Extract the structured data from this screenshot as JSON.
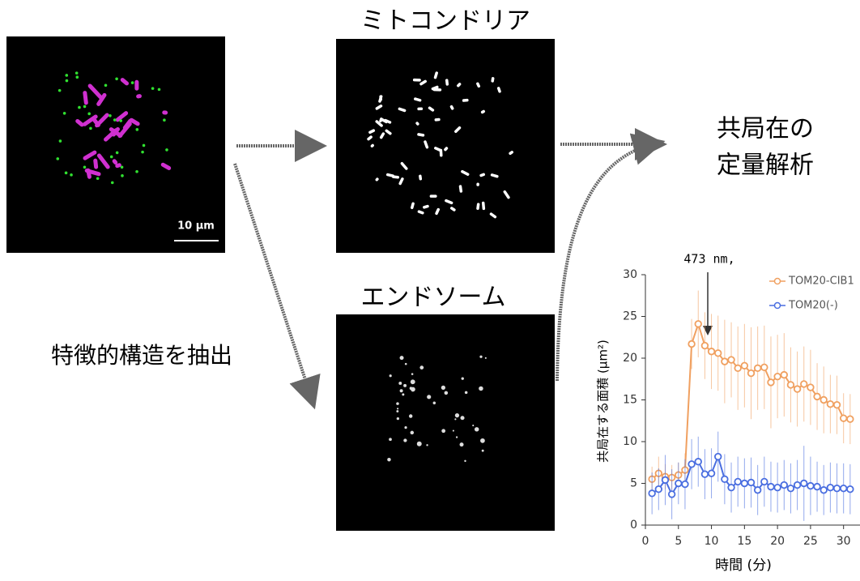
{
  "panels": {
    "mito_title": "ミトコンドリア",
    "endo_title": "エンドソーム",
    "scale_bar": "10 μm",
    "extract_label": "特徴的構造を抽出",
    "analysis_line1": "共局在の",
    "analysis_line2": "定量解析"
  },
  "chart_data": {
    "type": "line",
    "annotation": "473 nm,",
    "x_label": "時間 (分)",
    "y_label": "共局在する面積 (μm²)",
    "x": [
      1,
      2,
      3,
      4,
      5,
      6,
      7,
      8,
      9,
      10,
      11,
      12,
      13,
      14,
      15,
      16,
      17,
      18,
      19,
      20,
      21,
      22,
      23,
      24,
      25,
      26,
      27,
      28,
      29,
      30,
      31
    ],
    "series": [
      {
        "name": "TOM20-CIB1",
        "color": "#f0a060",
        "values": [
          5.5,
          6.2,
          5.8,
          5.7,
          6.0,
          6.6,
          21.7,
          24.1,
          21.5,
          20.8,
          20.6,
          19.6,
          19.8,
          18.8,
          19.1,
          18.2,
          18.8,
          18.9,
          17.1,
          17.8,
          18.0,
          16.8,
          16.3,
          16.9,
          16.5,
          15.4,
          15.0,
          14.5,
          14.4,
          12.8,
          12.7
        ],
        "errors": [
          1.5,
          2.0,
          1.5,
          1.5,
          1.5,
          2.0,
          3.0,
          4.0,
          4.0,
          4.5,
          4.5,
          5.0,
          4.5,
          5.0,
          5.0,
          5.5,
          5.0,
          5.0,
          5.5,
          5.0,
          5.0,
          4.5,
          4.5,
          4.5,
          4.5,
          4.0,
          4.0,
          3.5,
          3.5,
          3.0,
          3.0
        ]
      },
      {
        "name": "TOM20(-)",
        "color": "#4a6ee0",
        "values": [
          3.8,
          4.3,
          5.4,
          3.7,
          5.0,
          4.9,
          7.3,
          7.6,
          6.1,
          6.2,
          8.2,
          5.5,
          4.5,
          5.2,
          5.0,
          5.1,
          4.2,
          5.2,
          4.6,
          4.5,
          4.8,
          4.4,
          4.8,
          5.0,
          4.7,
          4.6,
          4.2,
          4.5,
          4.4,
          4.4,
          4.3
        ],
        "errors": [
          2.5,
          2.5,
          3.0,
          3.0,
          2.5,
          3.0,
          3.0,
          3.0,
          3.0,
          3.0,
          3.0,
          3.0,
          3.0,
          3.0,
          3.0,
          3.0,
          3.0,
          3.0,
          3.0,
          3.0,
          3.0,
          3.0,
          3.0,
          4.5,
          3.5,
          3.0,
          3.0,
          3.0,
          3.0,
          3.0,
          3.0
        ]
      }
    ],
    "xlim": [
      0,
      32
    ],
    "ylim": [
      0,
      30
    ],
    "xticks": [
      0,
      5,
      10,
      15,
      20,
      25,
      30
    ],
    "yticks": [
      0,
      5,
      10,
      15,
      20,
      25,
      30
    ],
    "legend": "top-right"
  }
}
